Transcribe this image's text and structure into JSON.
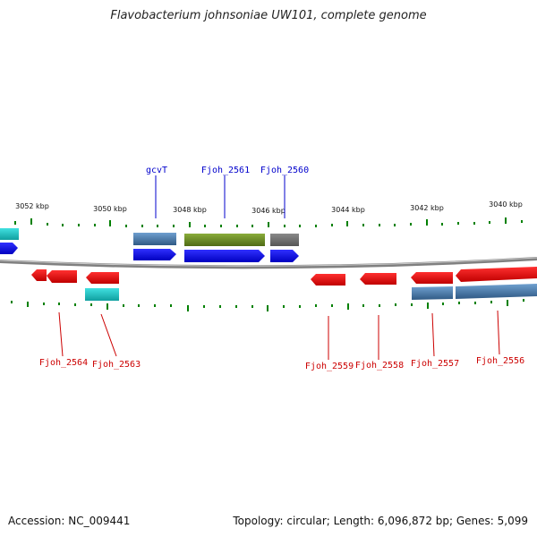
{
  "title": "Flavobacterium johnsoniae UW101, complete genome",
  "footer": {
    "accession": "Accession: NC_009441",
    "summary": "Topology: circular; Length: 6,096,872 bp; Genes: 5,099"
  },
  "colors": {
    "forward_gene": "#0000ee",
    "reverse_gene": "#ee0000",
    "cds_steelblue": "#4682b4",
    "cds_olive": "#6b8e23",
    "cds_gray": "#707070",
    "cds_cyan": "#20c0c0",
    "tick_green": "#008000",
    "label_blue": "#0000cc",
    "label_red": "#cc0000",
    "backbone": "#808080"
  },
  "scale_labels": [
    "3052 kbp",
    "3050 kbp",
    "3048 kbp",
    "3046 kbp",
    "3044 kbp",
    "3042 kbp",
    "3040 kbp"
  ],
  "gene_labels_top": [
    "gcvT",
    "Fjoh_2561",
    "Fjoh_2560"
  ],
  "gene_labels_bottom": [
    "Fjoh_2564",
    "Fjoh_2563",
    "Fjoh_2559",
    "Fjoh_2558",
    "Fjoh_2557",
    "Fjoh_2556"
  ]
}
